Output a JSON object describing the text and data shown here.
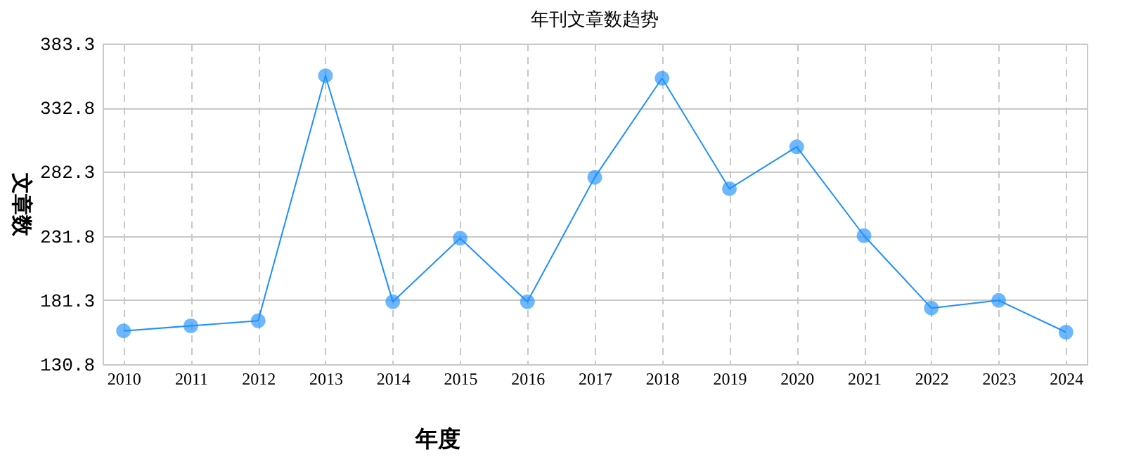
{
  "chart_data": {
    "type": "line",
    "title": "年刊文章数趋势",
    "xlabel": "年度",
    "ylabel": "文章数",
    "categories": [
      "2010",
      "2011",
      "2012",
      "2013",
      "2014",
      "2015",
      "2016",
      "2017",
      "2018",
      "2019",
      "2020",
      "2021",
      "2022",
      "2023",
      "2024"
    ],
    "series": [
      {
        "color": "#1e90ff",
        "values": [
          157,
          161,
          165,
          358,
          180,
          230,
          180,
          278,
          356,
          269,
          302,
          232,
          175,
          181,
          156
        ]
      }
    ],
    "ylim": [
      130.8,
      383.3
    ],
    "yticks": [
      130.8,
      181.3,
      231.8,
      282.3,
      332.8,
      383.3
    ],
    "grid": true,
    "marker": "circle",
    "line_style": "solid",
    "legend": false
  }
}
